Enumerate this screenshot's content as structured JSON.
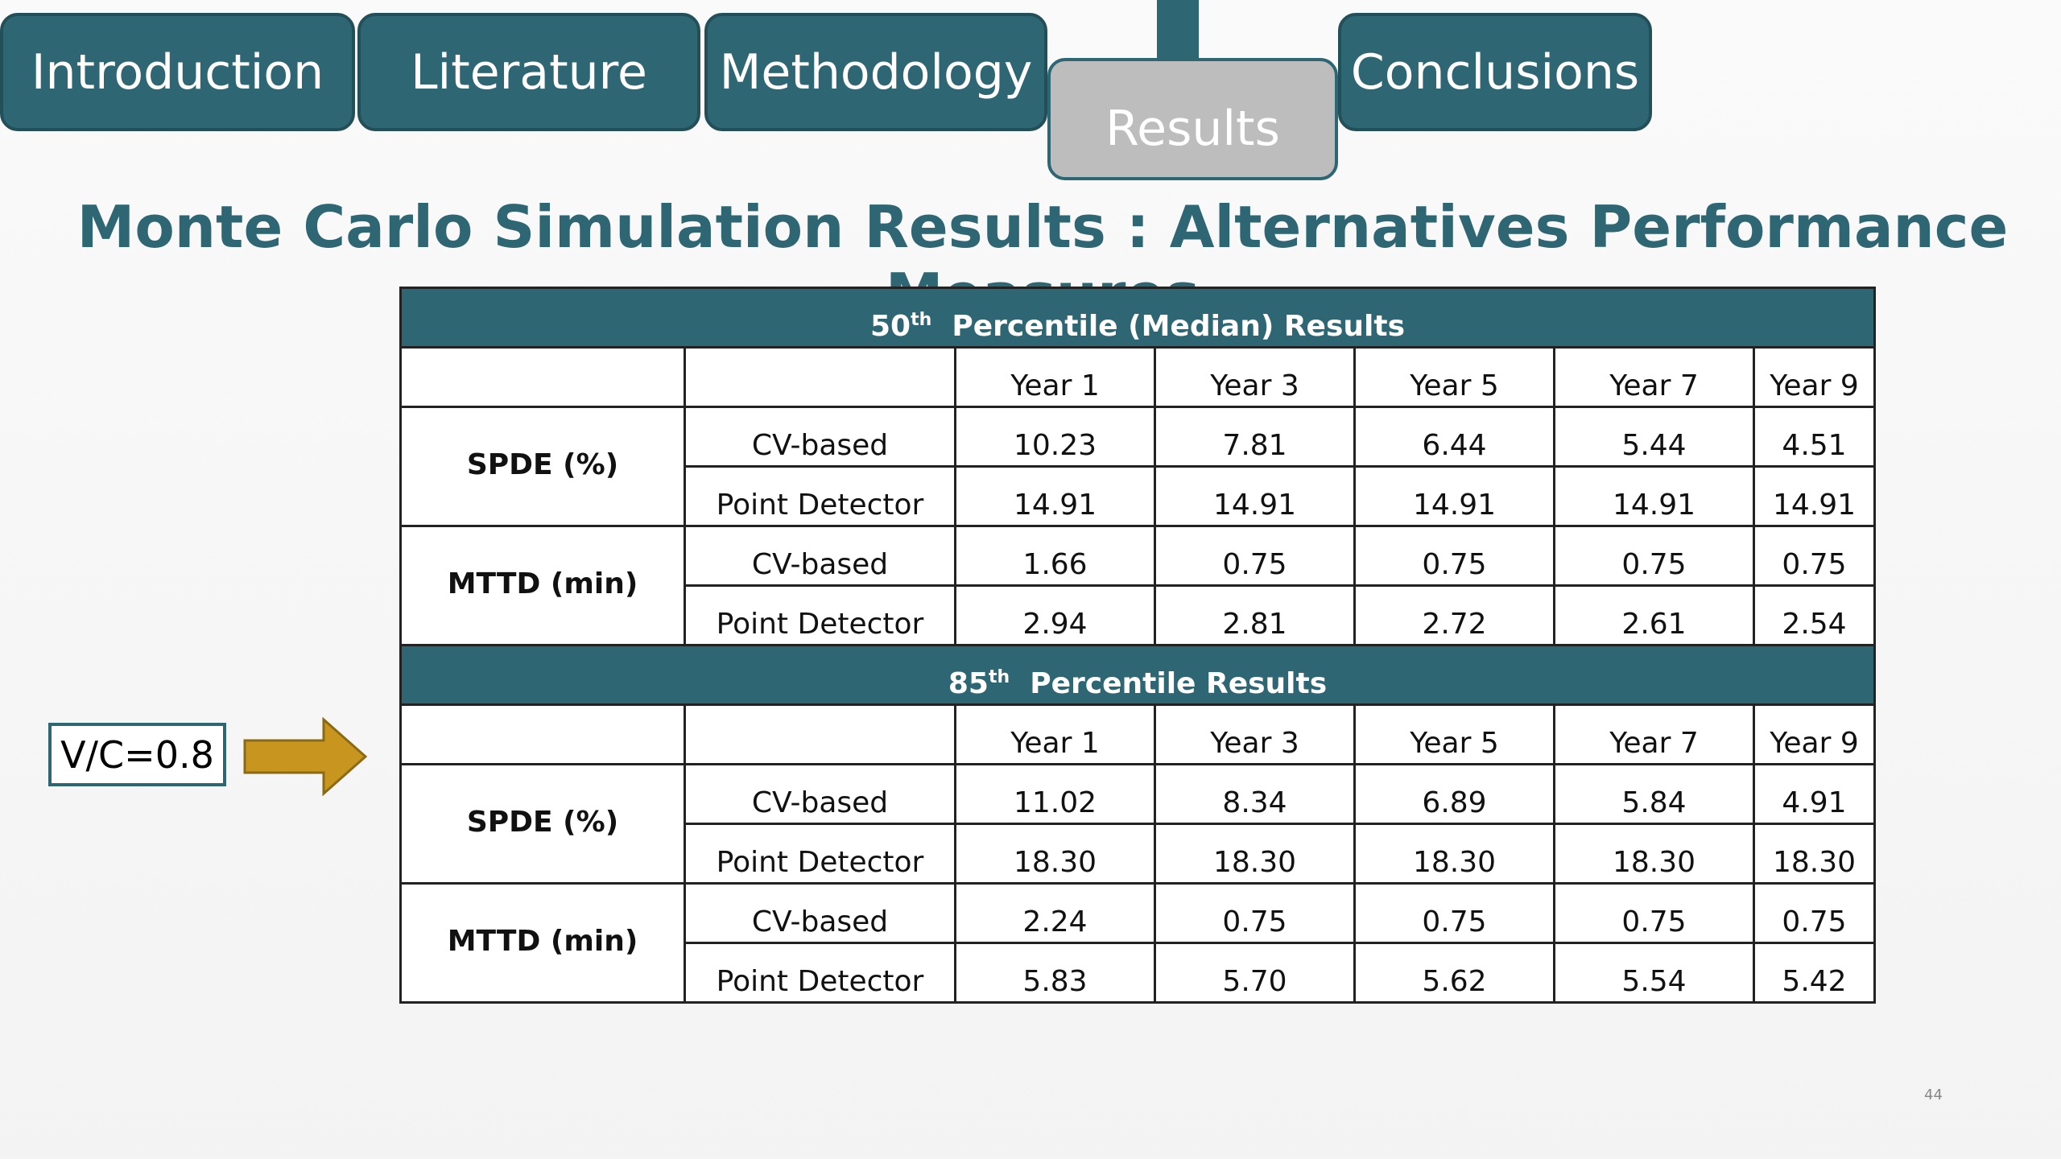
{
  "nav": {
    "tabs": [
      {
        "label": "Introduction",
        "active": false
      },
      {
        "label": "Literature",
        "active": false
      },
      {
        "label": "Methodology",
        "active": false
      },
      {
        "label": "Results",
        "active": true
      },
      {
        "label": "Conclusions",
        "active": false
      }
    ]
  },
  "title": "Monte Carlo Simulation Results : Alternatives Performance Measures",
  "scenario_label": "V/C=0.8",
  "page_number": "44",
  "table": {
    "sections": [
      {
        "heading": {
          "number": "50",
          "suffix": "th",
          "text": "Percentile (Median) Results"
        },
        "columns": [
          "Year 1",
          "Year 3",
          "Year 5",
          "Year 7",
          "Year 9"
        ],
        "groups": [
          {
            "label": "SPDE (%)",
            "rows": [
              {
                "method": "CV-based",
                "values": [
                  "10.23",
                  "7.81",
                  "6.44",
                  "5.44",
                  "4.51"
                ]
              },
              {
                "method": "Point Detector",
                "values": [
                  "14.91",
                  "14.91",
                  "14.91",
                  "14.91",
                  "14.91"
                ]
              }
            ]
          },
          {
            "label": "MTTD (min)",
            "rows": [
              {
                "method": "CV-based",
                "values": [
                  "1.66",
                  "0.75",
                  "0.75",
                  "0.75",
                  "0.75"
                ]
              },
              {
                "method": "Point Detector",
                "values": [
                  "2.94",
                  "2.81",
                  "2.72",
                  "2.61",
                  "2.54"
                ]
              }
            ]
          }
        ]
      },
      {
        "heading": {
          "number": "85",
          "suffix": "th",
          "text": "Percentile Results"
        },
        "columns": [
          "Year 1",
          "Year 3",
          "Year 5",
          "Year 7",
          "Year 9"
        ],
        "groups": [
          {
            "label": "SPDE (%)",
            "rows": [
              {
                "method": "CV-based",
                "values": [
                  "11.02",
                  "8.34",
                  "6.89",
                  "5.84",
                  "4.91"
                ]
              },
              {
                "method": "Point Detector",
                "values": [
                  "18.30",
                  "18.30",
                  "18.30",
                  "18.30",
                  "18.30"
                ]
              }
            ]
          },
          {
            "label": "MTTD (min)",
            "rows": [
              {
                "method": "CV-based",
                "values": [
                  "2.24",
                  "0.75",
                  "0.75",
                  "0.75",
                  "0.75"
                ]
              },
              {
                "method": "Point Detector",
                "values": [
                  "5.83",
                  "5.70",
                  "5.62",
                  "5.54",
                  "5.42"
                ]
              }
            ]
          }
        ]
      }
    ]
  }
}
